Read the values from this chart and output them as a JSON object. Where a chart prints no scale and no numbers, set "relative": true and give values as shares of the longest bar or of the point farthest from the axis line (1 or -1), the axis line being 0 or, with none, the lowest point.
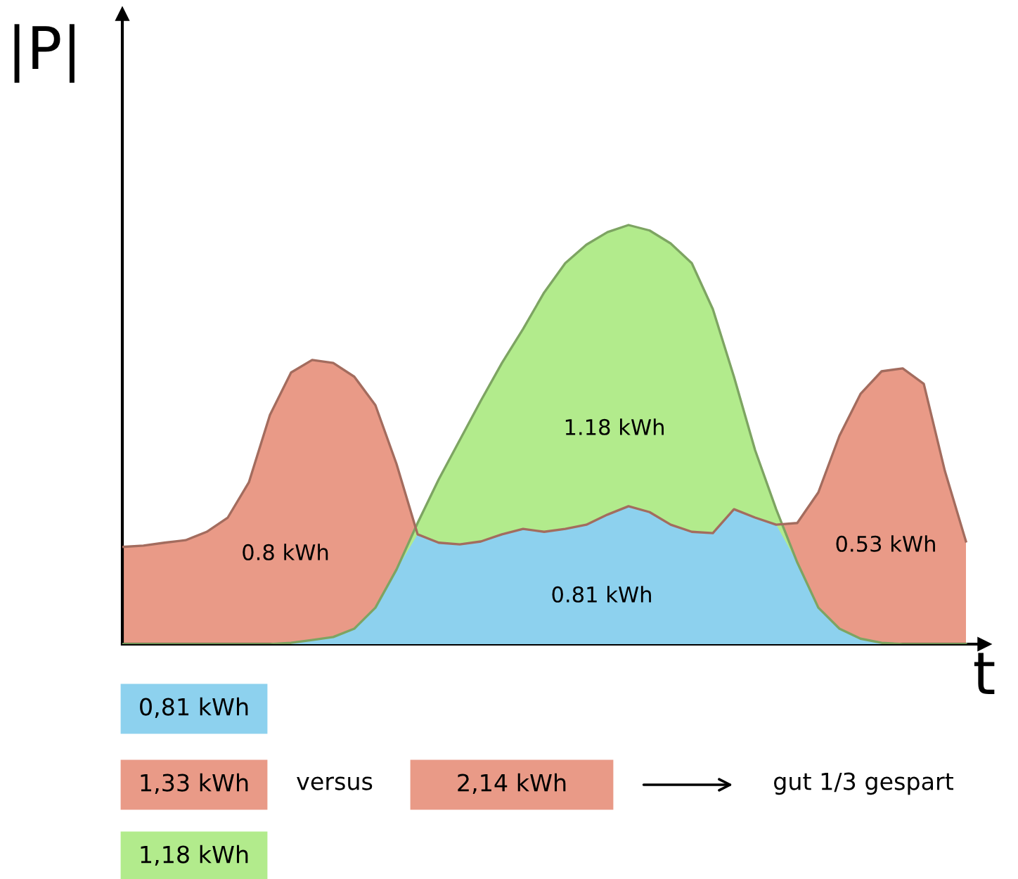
{
  "chart_data": {
    "type": "area",
    "relative": true,
    "xlabel": "t",
    "ylabel": "|P|",
    "categories": [
      null,
      null,
      null,
      null,
      null,
      null,
      null,
      null,
      null,
      null,
      null,
      null,
      null,
      null,
      null,
      null,
      null,
      null,
      null,
      null,
      null,
      null,
      null,
      null,
      null,
      null,
      null,
      null,
      null,
      null,
      null,
      null,
      null,
      null,
      null,
      null,
      null,
      null,
      null,
      null,
      null
    ],
    "series": [
      {
        "color": "#e99a87",
        "values": [
          0.232,
          0.235,
          0.242,
          0.248,
          0.268,
          0.302,
          0.386,
          0.547,
          0.648,
          0.678,
          0.671,
          0.638,
          0.57,
          0.43,
          0.262,
          0.242,
          0.238,
          0.245,
          0.262,
          0.275,
          0.268,
          0.275,
          0.285,
          0.309,
          0.329,
          0.315,
          0.285,
          0.268,
          0.265,
          0.322,
          0.302,
          0.285,
          0.289,
          0.362,
          0.497,
          0.597,
          0.651,
          0.658,
          0.621,
          0.413,
          0.245
        ]
      },
      {
        "color": "#b2eb8c",
        "values": [
          0,
          0,
          0,
          0,
          0,
          0,
          0,
          0,
          0.003,
          0.01,
          0.017,
          0.037,
          0.087,
          0.178,
          0.289,
          0.393,
          0.487,
          0.581,
          0.671,
          0.752,
          0.839,
          0.909,
          0.953,
          0.983,
          1,
          0.987,
          0.956,
          0.909,
          0.799,
          0.638,
          0.463,
          0.322,
          0.195,
          0.087,
          0.037,
          0.013,
          0.003,
          0,
          0,
          0,
          0
        ]
      },
      {
        "color": "#8dd1ee",
        "values": [
          0,
          0,
          0,
          0,
          0,
          0,
          0,
          0,
          0.003,
          0.01,
          0.017,
          0.037,
          0.087,
          0.178,
          0.262,
          0.242,
          0.238,
          0.245,
          0.262,
          0.275,
          0.268,
          0.275,
          0.285,
          0.309,
          0.329,
          0.315,
          0.285,
          0.268,
          0.265,
          0.322,
          0.302,
          0.285,
          0.195,
          0.087,
          0.037,
          0.013,
          0.003,
          0,
          0,
          0,
          0
        ]
      }
    ],
    "annotations": [
      "1.18 kWh",
      "0.8 kWh",
      "0.81 kWh",
      "0.53 kWh",
      "0,81 kWh",
      "1,33 kWh",
      "versus",
      "2,14 kWh",
      "gut 1/3 gespart",
      "1,18 kWh"
    ],
    "grid": false,
    "legend": false
  }
}
